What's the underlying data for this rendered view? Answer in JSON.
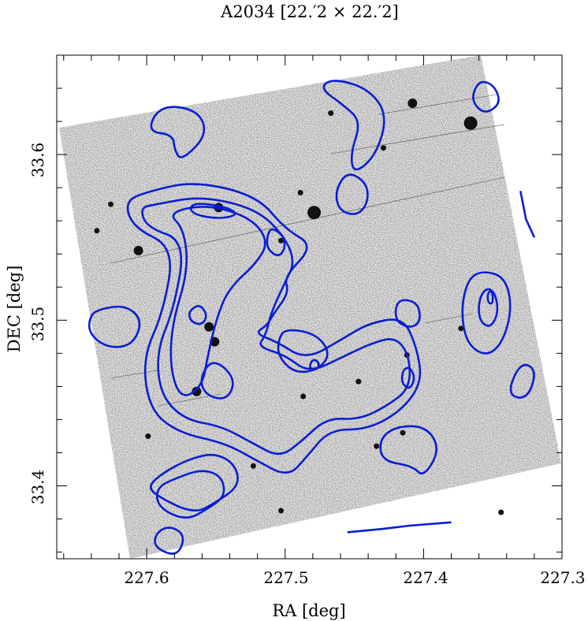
{
  "title": "A2034  [22.′2 × 22.′2]",
  "axes": {
    "xlabel": "RA [deg]",
    "ylabel": "DEC [deg]",
    "x_ticks": [
      "227.6",
      "227.5",
      "227.4",
      "227.3"
    ],
    "y_ticks": [
      "33.6",
      "33.5",
      "33.4"
    ]
  },
  "chart_data": {
    "type": "contour",
    "title": "A2034  [22.′2 × 22.′2]",
    "xlabel": "RA [deg]",
    "ylabel": "DEC [deg]",
    "xlim": [
      227.665,
      227.3
    ],
    "ylim": [
      33.356,
      33.66
    ],
    "x_ticks": [
      227.6,
      227.5,
      227.4,
      227.3
    ],
    "y_ticks": [
      33.6,
      33.5,
      33.4
    ],
    "contour_color": "#0a1ed2",
    "background": "grayscale optical sky image with stars and galaxies",
    "stars": [
      {
        "ra": 227.479,
        "dec": 33.565,
        "size": 3
      },
      {
        "ra": 227.366,
        "dec": 33.619,
        "size": 3
      },
      {
        "ra": 227.408,
        "dec": 33.631,
        "size": 2
      },
      {
        "ra": 227.606,
        "dec": 33.542,
        "size": 2
      },
      {
        "ra": 227.548,
        "dec": 33.568,
        "size": 2
      },
      {
        "ra": 227.555,
        "dec": 33.496,
        "size": 2
      },
      {
        "ra": 227.551,
        "dec": 33.487,
        "size": 2
      },
      {
        "ra": 227.564,
        "dec": 33.457,
        "size": 2
      },
      {
        "ra": 227.489,
        "dec": 33.577,
        "size": 1
      },
      {
        "ra": 227.503,
        "dec": 33.548,
        "size": 1
      },
      {
        "ra": 227.429,
        "dec": 33.604,
        "size": 1
      },
      {
        "ra": 227.412,
        "dec": 33.479,
        "size": 1
      },
      {
        "ra": 227.447,
        "dec": 33.463,
        "size": 1
      },
      {
        "ra": 227.487,
        "dec": 33.454,
        "size": 1
      },
      {
        "ra": 227.599,
        "dec": 33.43,
        "size": 1
      },
      {
        "ra": 227.434,
        "dec": 33.424,
        "size": 1
      },
      {
        "ra": 227.373,
        "dec": 33.495,
        "size": 1
      },
      {
        "ra": 227.503,
        "dec": 33.385,
        "size": 1
      },
      {
        "ra": 227.344,
        "dec": 33.384,
        "size": 1
      },
      {
        "ra": 227.523,
        "dec": 33.412,
        "size": 1
      },
      {
        "ra": 227.636,
        "dec": 33.554,
        "size": 1
      },
      {
        "ra": 227.626,
        "dec": 33.57,
        "size": 1
      },
      {
        "ra": 227.467,
        "dec": 33.625,
        "size": 1
      },
      {
        "ra": 227.415,
        "dec": 33.432,
        "size": 1
      }
    ],
    "contours": [
      [
        [
          227.581,
          33.612
        ],
        [
          227.6,
          33.614
        ],
        [
          227.59,
          33.63
        ],
        [
          227.563,
          33.627
        ],
        [
          227.556,
          33.612
        ],
        [
          227.575,
          33.596
        ],
        [
          227.58,
          33.603
        ]
      ],
      [
        [
          227.598,
          33.578
        ],
        [
          227.565,
          33.584
        ],
        [
          227.52,
          33.575
        ],
        [
          227.5,
          33.555
        ],
        [
          227.479,
          33.545
        ],
        [
          227.501,
          33.526
        ],
        [
          227.497,
          33.517
        ],
        [
          227.509,
          33.503
        ],
        [
          227.513,
          33.497
        ],
        [
          227.522,
          33.492
        ],
        [
          227.506,
          33.487
        ],
        [
          227.485,
          33.476
        ],
        [
          227.458,
          33.489
        ],
        [
          227.44,
          33.498
        ],
        [
          227.415,
          33.502
        ],
        [
          227.405,
          33.484
        ],
        [
          227.401,
          33.463
        ],
        [
          227.415,
          33.446
        ],
        [
          227.44,
          33.434
        ],
        [
          227.468,
          33.434
        ],
        [
          227.484,
          33.418
        ],
        [
          227.498,
          33.405
        ],
        [
          227.522,
          33.416
        ],
        [
          227.544,
          33.426
        ],
        [
          227.577,
          33.432
        ],
        [
          227.598,
          33.446
        ],
        [
          227.603,
          33.477
        ],
        [
          227.588,
          33.505
        ],
        [
          227.58,
          33.544
        ],
        [
          227.61,
          33.556
        ],
        [
          227.616,
          33.572
        ]
      ],
      [
        [
          227.593,
          33.57
        ],
        [
          227.56,
          33.575
        ],
        [
          227.52,
          33.567
        ],
        [
          227.5,
          33.55
        ],
        [
          227.493,
          33.535
        ],
        [
          227.5,
          33.523
        ],
        [
          227.51,
          33.505
        ],
        [
          227.514,
          33.491
        ],
        [
          227.52,
          33.484
        ],
        [
          227.5,
          33.479
        ],
        [
          227.483,
          33.468
        ],
        [
          227.458,
          33.478
        ],
        [
          227.438,
          33.486
        ],
        [
          227.42,
          33.49
        ],
        [
          227.41,
          33.478
        ],
        [
          227.41,
          33.459
        ],
        [
          227.425,
          33.449
        ],
        [
          227.446,
          33.44
        ],
        [
          227.47,
          33.441
        ],
        [
          227.488,
          33.427
        ],
        [
          227.504,
          33.417
        ],
        [
          227.524,
          33.426
        ],
        [
          227.546,
          33.436
        ],
        [
          227.573,
          33.44
        ],
        [
          227.59,
          33.455
        ],
        [
          227.593,
          33.481
        ],
        [
          227.58,
          33.508
        ],
        [
          227.572,
          33.548
        ],
        [
          227.6,
          33.556
        ],
        [
          227.605,
          33.568
        ]
      ],
      [
        [
          227.585,
          33.565
        ],
        [
          227.556,
          33.57
        ],
        [
          227.525,
          33.562
        ],
        [
          227.512,
          33.548
        ],
        [
          227.52,
          33.535
        ],
        [
          227.541,
          33.519
        ],
        [
          227.55,
          33.5
        ],
        [
          227.556,
          33.478
        ],
        [
          227.56,
          33.46
        ],
        [
          227.575,
          33.452
        ],
        [
          227.583,
          33.47
        ],
        [
          227.582,
          33.497
        ],
        [
          227.57,
          33.53
        ],
        [
          227.573,
          33.555
        ]
      ],
      [
        [
          227.568,
          33.571
        ],
        [
          227.545,
          33.569
        ],
        [
          227.533,
          33.564
        ],
        [
          227.547,
          33.561
        ],
        [
          227.568,
          33.564
        ]
      ],
      [
        [
          227.51,
          33.556
        ],
        [
          227.501,
          33.551
        ],
        [
          227.5,
          33.543
        ],
        [
          227.505,
          33.538
        ],
        [
          227.513,
          33.543
        ],
        [
          227.513,
          33.551
        ]
      ],
      [
        [
          227.5,
          33.495
        ],
        [
          227.478,
          33.492
        ],
        [
          227.467,
          33.48
        ],
        [
          227.476,
          33.47
        ],
        [
          227.493,
          33.468
        ],
        [
          227.505,
          33.478
        ],
        [
          227.505,
          33.488
        ]
      ],
      [
        [
          227.48,
          33.477
        ],
        [
          227.475,
          33.474
        ],
        [
          227.477,
          33.47
        ],
        [
          227.483,
          33.471
        ]
      ],
      [
        [
          227.57,
          33.505
        ],
        [
          227.562,
          33.51
        ],
        [
          227.556,
          33.503
        ],
        [
          227.56,
          33.497
        ],
        [
          227.568,
          33.499
        ]
      ],
      [
        [
          227.555,
          33.475
        ],
        [
          227.545,
          33.473
        ],
        [
          227.536,
          33.463
        ],
        [
          227.542,
          33.452
        ],
        [
          227.556,
          33.454
        ],
        [
          227.562,
          33.463
        ]
      ],
      [
        [
          227.419,
          33.513
        ],
        [
          227.404,
          33.511
        ],
        [
          227.402,
          33.499
        ],
        [
          227.41,
          33.495
        ],
        [
          227.421,
          33.5
        ]
      ],
      [
        [
          227.415,
          33.47
        ],
        [
          227.41,
          33.472
        ],
        [
          227.406,
          33.465
        ],
        [
          227.41,
          33.458
        ],
        [
          227.416,
          33.462
        ]
      ],
      [
        [
          227.466,
          33.646
        ],
        [
          227.44,
          33.64
        ],
        [
          227.426,
          33.624
        ],
        [
          227.434,
          33.6
        ],
        [
          227.45,
          33.588
        ],
        [
          227.453,
          33.6
        ],
        [
          227.445,
          33.62
        ],
        [
          227.458,
          33.63
        ],
        [
          227.475,
          33.64
        ]
      ],
      [
        [
          227.455,
          33.59
        ],
        [
          227.441,
          33.583
        ],
        [
          227.44,
          33.571
        ],
        [
          227.448,
          33.563
        ],
        [
          227.461,
          33.566
        ],
        [
          227.464,
          33.578
        ]
      ],
      [
        [
          227.357,
          33.53
        ],
        [
          227.341,
          33.526
        ],
        [
          227.336,
          33.507
        ],
        [
          227.343,
          33.486
        ],
        [
          227.355,
          33.478
        ],
        [
          227.369,
          33.486
        ],
        [
          227.373,
          33.506
        ],
        [
          227.368,
          33.525
        ]
      ],
      [
        [
          227.354,
          33.52
        ],
        [
          227.348,
          33.516
        ],
        [
          227.346,
          33.504
        ],
        [
          227.352,
          33.495
        ],
        [
          227.36,
          33.5
        ],
        [
          227.36,
          33.513
        ]
      ],
      [
        [
          227.352,
          33.518
        ],
        [
          227.35,
          33.516
        ],
        [
          227.35,
          33.51
        ],
        [
          227.353,
          33.51
        ],
        [
          227.354,
          33.515
        ]
      ],
      [
        [
          227.633,
          33.507
        ],
        [
          227.615,
          33.509
        ],
        [
          227.603,
          33.5
        ],
        [
          227.61,
          33.485
        ],
        [
          227.628,
          33.483
        ],
        [
          227.642,
          33.492
        ],
        [
          227.641,
          33.503
        ]
      ],
      [
        [
          227.593,
          33.394
        ],
        [
          227.566,
          33.383
        ],
        [
          227.55,
          33.39
        ],
        [
          227.533,
          33.4
        ],
        [
          227.536,
          33.413
        ],
        [
          227.551,
          33.42
        ],
        [
          227.57,
          33.416
        ],
        [
          227.588,
          33.408
        ],
        [
          227.599,
          33.4
        ]
      ],
      [
        [
          227.592,
          33.387
        ],
        [
          227.572,
          33.379
        ],
        [
          227.556,
          33.386
        ],
        [
          227.543,
          33.394
        ],
        [
          227.546,
          33.406
        ],
        [
          227.56,
          33.41
        ],
        [
          227.578,
          33.405
        ],
        [
          227.593,
          33.399
        ]
      ],
      [
        [
          227.595,
          33.363
        ],
        [
          227.578,
          33.357
        ],
        [
          227.572,
          33.37
        ],
        [
          227.583,
          33.376
        ],
        [
          227.593,
          33.372
        ]
      ],
      [
        [
          227.43,
          33.415
        ],
        [
          227.408,
          33.412
        ],
        [
          227.4,
          33.405
        ],
        [
          227.388,
          33.422
        ],
        [
          227.398,
          33.436
        ],
        [
          227.42,
          33.436
        ],
        [
          227.432,
          33.428
        ]
      ],
      [
        [
          227.349,
          33.642
        ],
        [
          227.36,
          33.645
        ],
        [
          227.366,
          33.633
        ],
        [
          227.356,
          33.624
        ],
        [
          227.344,
          33.631
        ]
      ],
      [
        [
          227.33,
          33.578
        ],
        [
          227.326,
          33.561
        ],
        [
          227.32,
          33.55
        ]
      ],
      [
        [
          227.34,
          33.455
        ],
        [
          227.325,
          33.452
        ],
        [
          227.318,
          33.47
        ],
        [
          227.33,
          33.475
        ]
      ],
      [
        [
          227.455,
          33.372
        ],
        [
          227.43,
          33.374
        ],
        [
          227.41,
          33.376
        ],
        [
          227.38,
          33.378
        ]
      ]
    ]
  }
}
